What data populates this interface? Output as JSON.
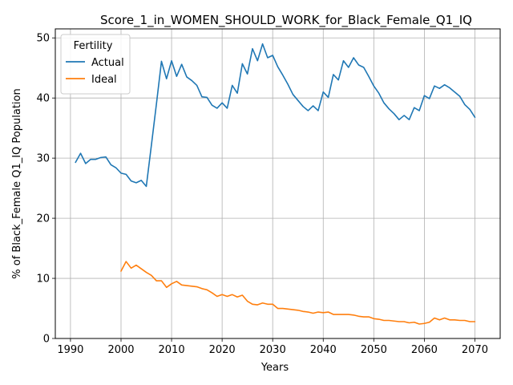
{
  "chart_data": {
    "type": "line",
    "title": "Score_1_in_WOMEN_SHOULD_WORK_for_Black_Female_Q1_IQ",
    "xlabel": "Years",
    "ylabel": "% of Black_Female Q1_IQ Population",
    "xlim": [
      1987,
      2075
    ],
    "ylim": [
      0,
      51.5
    ],
    "xticks": [
      1990,
      2000,
      2010,
      2020,
      2030,
      2040,
      2050,
      2060,
      2070
    ],
    "yticks": [
      0,
      10,
      20,
      30,
      40,
      50
    ],
    "grid": true,
    "legend": {
      "title": "Fertility",
      "placement": "top-left"
    },
    "series": [
      {
        "name": "Actual",
        "color": "#1f77b4",
        "x": [
          1991,
          1992,
          1993,
          1994,
          1995,
          1996,
          1997,
          1998,
          1999,
          2000,
          2001,
          2002,
          2003,
          2004,
          2005,
          2006,
          2007,
          2008,
          2009,
          2010,
          2011,
          2012,
          2013,
          2014,
          2015,
          2016,
          2017,
          2018,
          2019,
          2020,
          2021,
          2022,
          2023,
          2024,
          2025,
          2026,
          2027,
          2028,
          2029,
          2030,
          2031,
          2032,
          2033,
          2034,
          2035,
          2036,
          2037,
          2038,
          2039,
          2040,
          2041,
          2042,
          2043,
          2044,
          2045,
          2046,
          2047,
          2048,
          2049,
          2050,
          2051,
          2052,
          2053,
          2054,
          2055,
          2056,
          2057,
          2058,
          2059,
          2060,
          2061,
          2062,
          2063,
          2064,
          2065,
          2066,
          2067,
          2068,
          2069,
          2070
        ],
        "values": [
          29.3,
          30.8,
          29.1,
          29.8,
          29.8,
          30.1,
          30.2,
          28.9,
          28.4,
          27.5,
          27.3,
          26.2,
          25.9,
          26.3,
          25.3,
          32.1,
          39.0,
          46.1,
          43.2,
          46.2,
          43.6,
          45.6,
          43.5,
          42.9,
          42.1,
          40.2,
          40.1,
          38.8,
          38.3,
          39.2,
          38.3,
          42.1,
          40.8,
          45.7,
          44.0,
          48.2,
          46.2,
          49.0,
          46.7,
          47.1,
          45.2,
          43.8,
          42.3,
          40.6,
          39.6,
          38.6,
          37.9,
          38.7,
          37.9,
          41.0,
          40.1,
          43.9,
          43.0,
          46.2,
          45.1,
          46.7,
          45.5,
          45.1,
          43.6,
          42.0,
          40.8,
          39.2,
          38.2,
          37.4,
          36.4,
          37.1,
          36.4,
          38.4,
          37.9,
          40.4,
          39.9,
          42.0,
          41.6,
          42.2,
          41.7,
          41.0,
          40.3,
          38.9,
          38.1,
          36.8
        ]
      },
      {
        "name": "Ideal",
        "color": "#ff7f0e",
        "x": [
          2000,
          2001,
          2002,
          2003,
          2004,
          2005,
          2006,
          2007,
          2008,
          2009,
          2010,
          2011,
          2012,
          2013,
          2014,
          2015,
          2016,
          2017,
          2018,
          2019,
          2020,
          2021,
          2022,
          2023,
          2024,
          2025,
          2026,
          2027,
          2028,
          2029,
          2030,
          2031,
          2032,
          2033,
          2034,
          2035,
          2036,
          2037,
          2038,
          2039,
          2040,
          2041,
          2042,
          2043,
          2044,
          2045,
          2046,
          2047,
          2048,
          2049,
          2050,
          2051,
          2052,
          2053,
          2054,
          2055,
          2056,
          2057,
          2058,
          2059,
          2060,
          2061,
          2062,
          2063,
          2064,
          2065,
          2066,
          2067,
          2068,
          2069,
          2070
        ],
        "values": [
          11.2,
          12.8,
          11.7,
          12.2,
          11.6,
          11.0,
          10.5,
          9.6,
          9.6,
          8.5,
          9.1,
          9.5,
          8.9,
          8.8,
          8.7,
          8.6,
          8.3,
          8.1,
          7.6,
          7.0,
          7.3,
          7.0,
          7.3,
          6.9,
          7.2,
          6.2,
          5.7,
          5.6,
          5.9,
          5.7,
          5.7,
          5.0,
          5.0,
          4.9,
          4.8,
          4.7,
          4.5,
          4.4,
          4.2,
          4.4,
          4.3,
          4.4,
          4.0,
          4.0,
          4.0,
          4.0,
          3.9,
          3.7,
          3.6,
          3.6,
          3.3,
          3.2,
          3.0,
          3.0,
          2.9,
          2.8,
          2.8,
          2.6,
          2.7,
          2.4,
          2.5,
          2.7,
          3.4,
          3.1,
          3.4,
          3.1,
          3.1,
          3.0,
          3.0,
          2.8,
          2.8
        ]
      }
    ]
  }
}
